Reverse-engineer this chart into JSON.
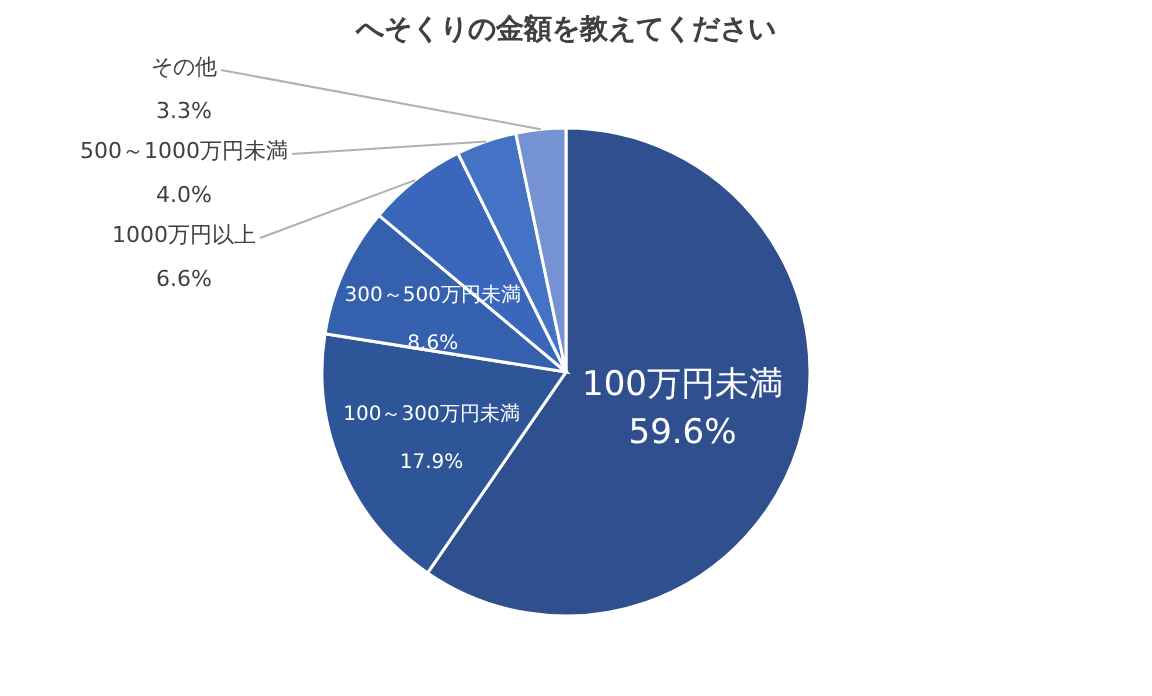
{
  "chart_data": {
    "type": "pie",
    "title": "へそくりの金額を教えてください",
    "categories": [
      "100万円未満",
      "100～300万円未満",
      "300～500万円未満",
      "1000万円以上",
      "500～1000万円未満",
      "その他"
    ],
    "values": [
      59.6,
      17.9,
      8.6,
      6.6,
      4.0,
      3.3
    ],
    "value_labels": [
      "59.6%",
      "17.9%",
      "8.6%",
      "6.6%",
      "4.0%",
      "3.3%"
    ],
    "colors": [
      "#2f4f8f",
      "#2e5597",
      "#3460ad",
      "#3a67bb",
      "#4472c4",
      "#7593d3"
    ]
  }
}
